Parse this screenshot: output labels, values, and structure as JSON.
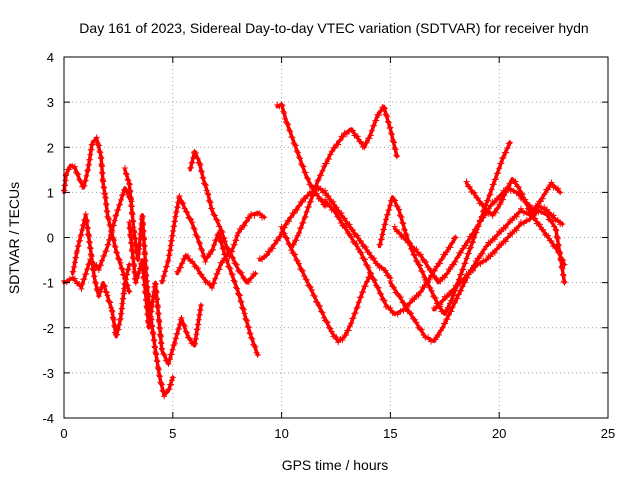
{
  "chart_data": {
    "type": "scatter",
    "title": "Day 161 of 2023, Sidereal Day-to-day VTEC variation (SDTVAR) for receiver hydn",
    "xlabel": "GPS time / hours",
    "ylabel": "SDTVAR / TECUs",
    "xlim": [
      0,
      25
    ],
    "ylim": [
      -4,
      4
    ],
    "xticks": [
      "0",
      "5",
      "10",
      "15",
      "20",
      "25"
    ],
    "yticks": [
      "-4",
      "-3",
      "-2",
      "-1",
      "0",
      "1",
      "2",
      "3",
      "4"
    ],
    "grid": true,
    "marker": "+",
    "colors": {
      "series": "#ff0000",
      "grid": "#a0a0a0",
      "axis": "#000000"
    },
    "series": [
      {
        "x": [
          0.0,
          0.4,
          0.8,
          1.2,
          1.6,
          2.0,
          2.4,
          2.8,
          3.1
        ],
        "y": [
          -1.0,
          -0.9,
          -1.1,
          -0.5,
          -0.7,
          -0.2,
          0.5,
          1.1,
          0.8
        ]
      },
      {
        "x": [
          0.0,
          0.1,
          0.3,
          0.5,
          0.7,
          0.9,
          1.1,
          1.3,
          1.5,
          1.7,
          1.8,
          1.9,
          2.0,
          2.2,
          2.4,
          2.6,
          2.8,
          3.0
        ],
        "y": [
          1.0,
          1.4,
          1.6,
          1.55,
          1.3,
          1.1,
          1.5,
          2.1,
          2.2,
          1.8,
          1.2,
          0.9,
          0.5,
          0.1,
          -0.3,
          -0.6,
          -0.9,
          -1.2
        ]
      },
      {
        "x": [
          0.4,
          0.6,
          0.8,
          1.0,
          1.2,
          1.4,
          1.6,
          1.8,
          2.0,
          2.2,
          2.4,
          2.6,
          2.8,
          3.0
        ],
        "y": [
          -0.8,
          -0.3,
          0.1,
          0.5,
          -0.2,
          -0.9,
          -1.3,
          -1.0,
          -1.3,
          -1.6,
          -2.2,
          -1.8,
          -1.0,
          -0.6
        ]
      },
      {
        "x": [
          2.8,
          3.0,
          3.2,
          3.4,
          3.6,
          3.8,
          4.0,
          4.2,
          4.4,
          4.6,
          4.8,
          5.0
        ],
        "y": [
          1.5,
          1.2,
          0.2,
          -0.5,
          0.5,
          -1.0,
          -1.8,
          -2.5,
          -3.1,
          -3.5,
          -3.4,
          -3.1
        ]
      },
      {
        "x": [
          3.0,
          3.3,
          3.6,
          3.9,
          4.2,
          4.5,
          4.8,
          5.1,
          5.4,
          5.7,
          6.0,
          6.3
        ],
        "y": [
          0.3,
          -1.0,
          -0.5,
          -2.0,
          -1.0,
          -2.5,
          -2.8,
          -2.3,
          -1.8,
          -2.2,
          -2.4,
          -1.5
        ]
      },
      {
        "x": [
          4.5,
          4.8,
          5.1,
          5.3,
          5.6,
          5.9,
          6.2,
          6.5,
          6.8,
          7.1,
          7.4,
          7.7,
          8.0,
          8.3,
          8.6,
          8.9
        ],
        "y": [
          -1.0,
          -0.5,
          0.4,
          0.9,
          0.6,
          0.3,
          -0.1,
          -0.5,
          -0.3,
          0.1,
          -0.4,
          -0.8,
          -1.2,
          -1.7,
          -2.2,
          -2.6
        ]
      },
      {
        "x": [
          5.8,
          6.0,
          6.2,
          6.4,
          6.6,
          6.8,
          7.0,
          7.2,
          7.4,
          7.6,
          7.8,
          8.0,
          8.3,
          8.6,
          8.9,
          9.2
        ],
        "y": [
          1.5,
          1.9,
          1.7,
          1.3,
          1.0,
          0.6,
          0.4,
          0.2,
          -0.1,
          -0.4,
          -0.2,
          0.1,
          0.3,
          0.5,
          0.55,
          0.45
        ]
      },
      {
        "x": [
          5.2,
          5.6,
          6.0,
          6.4,
          6.8,
          7.2,
          7.6,
          8.0,
          8.4,
          8.8
        ],
        "y": [
          -0.8,
          -0.4,
          -0.6,
          -0.9,
          -1.1,
          -0.6,
          -0.3,
          -0.7,
          -1.0,
          -0.8
        ]
      },
      {
        "x": [
          9.8,
          10.0,
          10.2,
          10.5,
          10.8,
          11.1,
          11.4,
          11.7,
          12.0
        ],
        "y": [
          2.9,
          2.95,
          2.6,
          2.2,
          1.8,
          1.4,
          1.1,
          0.9,
          0.7
        ]
      },
      {
        "x": [
          10.0,
          10.2,
          10.5,
          10.8,
          11.1,
          11.4,
          11.7,
          12.0,
          12.3,
          12.6,
          12.9,
          13.2,
          13.5,
          13.8,
          14.1
        ],
        "y": [
          0.2,
          0.0,
          -0.3,
          -0.6,
          -0.9,
          -1.2,
          -1.5,
          -1.8,
          -2.1,
          -2.3,
          -2.2,
          -1.9,
          -1.5,
          -1.1,
          -0.8
        ]
      },
      {
        "x": [
          9.0,
          9.3,
          9.6,
          9.9,
          10.2,
          10.5,
          10.8,
          11.1,
          11.4,
          11.7,
          12.0,
          12.3,
          12.6,
          12.9,
          13.2,
          13.5,
          13.8,
          14.1,
          14.4,
          14.7,
          15.0
        ],
        "y": [
          -0.5,
          -0.4,
          -0.2,
          0.0,
          0.3,
          0.5,
          0.7,
          0.9,
          1.0,
          1.1,
          1.0,
          0.8,
          0.6,
          0.4,
          0.2,
          0.0,
          -0.2,
          -0.4,
          -0.6,
          -0.7,
          -0.9
        ]
      },
      {
        "x": [
          10.5,
          10.8,
          11.1,
          11.4,
          11.7,
          12.0,
          12.3,
          12.6,
          12.9,
          13.2,
          13.5,
          13.8,
          14.1,
          14.4,
          14.7,
          15.0,
          15.3
        ],
        "y": [
          -0.2,
          0.1,
          0.5,
          0.9,
          1.3,
          1.6,
          1.9,
          2.1,
          2.3,
          2.4,
          2.2,
          2.0,
          2.3,
          2.7,
          2.9,
          2.4,
          1.8
        ]
      },
      {
        "x": [
          12.0,
          12.4,
          12.8,
          13.2,
          13.6,
          14.0,
          14.4,
          14.8,
          15.2,
          15.6,
          16.0,
          16.4,
          16.8,
          17.2,
          17.6,
          18.0
        ],
        "y": [
          0.8,
          0.6,
          0.3,
          0.0,
          -0.3,
          -0.7,
          -1.1,
          -1.5,
          -1.7,
          -1.6,
          -1.4,
          -1.2,
          -0.9,
          -0.6,
          -0.3,
          0.0
        ]
      },
      {
        "x": [
          15.0,
          15.4,
          15.8,
          16.2,
          16.6,
          17.0,
          17.4,
          17.8,
          18.2,
          18.6,
          19.0,
          19.4,
          19.8,
          20.2,
          20.6,
          21.0,
          21.4,
          21.8,
          22.2,
          22.6,
          22.9
        ],
        "y": [
          -1.0,
          -1.3,
          -1.6,
          -1.9,
          -2.2,
          -2.3,
          -2.0,
          -1.6,
          -1.2,
          -0.8,
          -0.5,
          -0.2,
          0.0,
          0.2,
          0.4,
          0.6,
          0.5,
          0.7,
          0.6,
          0.4,
          0.3
        ]
      },
      {
        "x": [
          15.2,
          15.6,
          16.0,
          16.4,
          16.8,
          17.2,
          17.6,
          18.0,
          18.4,
          18.8,
          19.2,
          19.6,
          20.0,
          20.4,
          20.8,
          21.2,
          21.6,
          22.0,
          22.4,
          22.8
        ],
        "y": [
          0.2,
          0.0,
          -0.2,
          -0.4,
          -0.7,
          -1.0,
          -0.8,
          -0.5,
          -0.2,
          0.1,
          0.4,
          0.7,
          0.9,
          1.1,
          1.0,
          0.8,
          0.6,
          0.9,
          1.2,
          1.0
        ]
      },
      {
        "x": [
          14.5,
          14.8,
          15.1,
          15.4,
          15.7,
          16.0,
          16.3,
          16.6,
          16.9,
          17.2,
          17.5,
          17.8,
          18.1,
          18.4,
          18.7,
          19.0,
          19.3,
          19.6,
          19.9,
          20.2,
          20.5
        ],
        "y": [
          -0.2,
          0.4,
          0.9,
          0.6,
          0.1,
          -0.3,
          -0.6,
          -0.9,
          -1.2,
          -1.5,
          -1.7,
          -1.4,
          -1.0,
          -0.6,
          -0.2,
          0.2,
          0.6,
          1.0,
          1.4,
          1.8,
          2.1
        ]
      },
      {
        "x": [
          17.0,
          17.4,
          17.8,
          18.2,
          18.6,
          19.0,
          19.4,
          19.8,
          20.2,
          20.6,
          21.0,
          21.4,
          21.8,
          22.2,
          22.6,
          23.0
        ],
        "y": [
          -1.6,
          -1.4,
          -1.2,
          -1.0,
          -0.8,
          -0.6,
          -0.5,
          -0.3,
          -0.1,
          0.1,
          0.3,
          0.4,
          0.6,
          0.5,
          0.2,
          -1.0
        ]
      },
      {
        "x": [
          18.5,
          18.8,
          19.1,
          19.4,
          19.7,
          20.0,
          20.3,
          20.6,
          20.9,
          21.2,
          21.5,
          21.8,
          22.1,
          22.4,
          22.7,
          23.0
        ],
        "y": [
          1.2,
          1.0,
          0.8,
          0.6,
          0.5,
          0.7,
          1.0,
          1.3,
          1.1,
          0.8,
          0.5,
          0.3,
          0.1,
          -0.1,
          -0.3,
          -0.6
        ]
      }
    ]
  }
}
